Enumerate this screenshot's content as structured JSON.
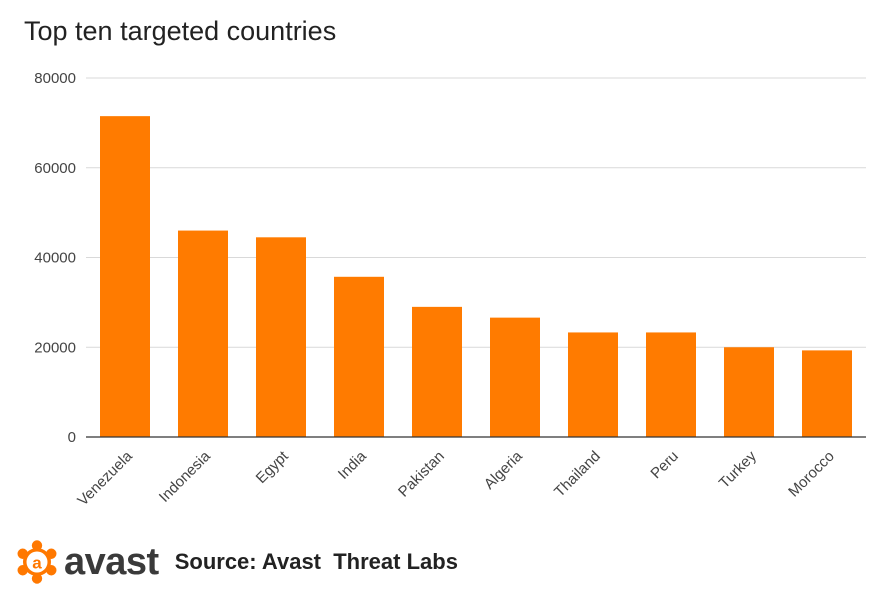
{
  "chart_data": {
    "type": "bar",
    "title": "Top ten targeted countries",
    "xlabel": "",
    "ylabel": "",
    "categories": [
      "Venezuela",
      "Indonesia",
      "Egypt",
      "India",
      "Pakistan",
      "Algeria",
      "Thailand",
      "Peru",
      "Turkey",
      "Morocco"
    ],
    "values": [
      71500,
      46000,
      44500,
      35700,
      29000,
      26600,
      23300,
      23300,
      20000,
      19300
    ],
    "ylim": [
      0,
      80000
    ],
    "yticks": [
      0,
      20000,
      40000,
      60000,
      80000
    ],
    "grid": true,
    "bar_color": "#ff7b00"
  },
  "footer": {
    "logo_text": "avast",
    "logo_color": "#ff7800",
    "source": "Source: Avast  Threat Labs"
  }
}
